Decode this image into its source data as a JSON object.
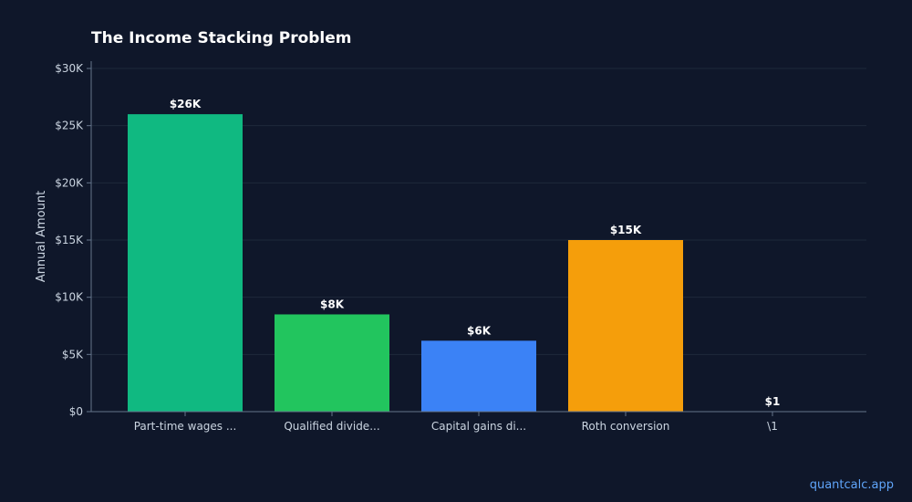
{
  "chart_data": {
    "type": "bar",
    "title": "The Income Stacking Problem",
    "xlabel": "",
    "ylabel": "Annual Amount",
    "categories": [
      "Part-time wages ...",
      "Qualified divide...",
      "Capital gains di...",
      "Roth conversion",
      "\\1"
    ],
    "values": [
      26000,
      8500,
      6200,
      15000,
      1
    ],
    "data_labels": [
      "$26K",
      "$8K",
      "$6K",
      "$15K",
      "$1"
    ],
    "colors": [
      "#10b981",
      "#22c55e",
      "#3b82f6",
      "#f59e0b",
      "#ef4444"
    ],
    "ylim": [
      0,
      30000
    ],
    "yticks": [
      0,
      5000,
      10000,
      15000,
      20000,
      25000,
      30000
    ],
    "ytick_labels": [
      "$0",
      "$5K",
      "$10K",
      "$15K",
      "$20K",
      "$25K",
      "$30K"
    ],
    "grid": true,
    "legend": "none"
  },
  "watermark": "quantcalc.app",
  "colors": {
    "background": "#0f172a",
    "grid": "#1e293b",
    "axis": "#64748b"
  }
}
